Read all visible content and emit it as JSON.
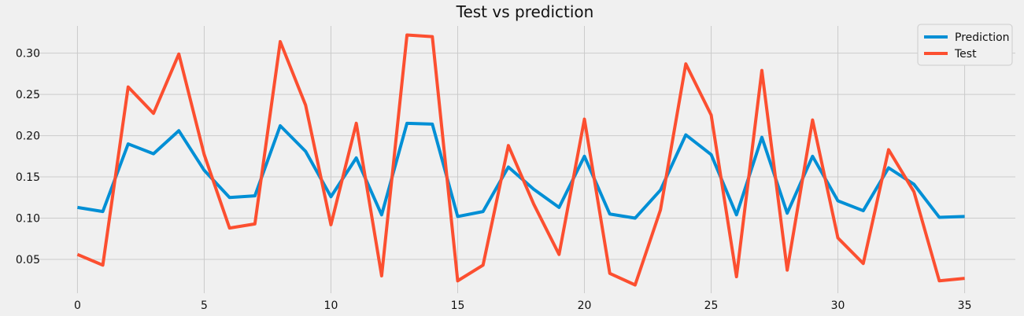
{
  "chart_data": {
    "type": "line",
    "title": "Test  vs prediction",
    "xlabel": "",
    "ylabel": "",
    "x": [
      0,
      1,
      2,
      3,
      4,
      5,
      6,
      7,
      8,
      9,
      10,
      11,
      12,
      13,
      14,
      15,
      16,
      17,
      18,
      19,
      20,
      21,
      22,
      23,
      24,
      25,
      26,
      27,
      28,
      29,
      30,
      31,
      32,
      33,
      34,
      35
    ],
    "xlim": [
      -2,
      37
    ],
    "ylim": [
      0.009,
      0.333
    ],
    "xticks": [
      0,
      5,
      10,
      15,
      20,
      25,
      30,
      35
    ],
    "yticks": [
      0.05,
      0.1,
      0.15,
      0.2,
      0.25,
      0.3
    ],
    "ytick_labels": [
      "0.05",
      "0.10",
      "0.15",
      "0.20",
      "0.25",
      "0.30"
    ],
    "grid": true,
    "legend_position": "top-right",
    "series": [
      {
        "name": "Prediction",
        "color": "#008fd5",
        "values": [
          0.113,
          0.108,
          0.19,
          0.178,
          0.206,
          0.158,
          0.125,
          0.127,
          0.212,
          0.181,
          0.126,
          0.173,
          0.104,
          0.215,
          0.214,
          0.102,
          0.108,
          0.162,
          0.135,
          0.113,
          0.175,
          0.105,
          0.1,
          0.134,
          0.201,
          0.177,
          0.104,
          0.198,
          0.106,
          0.175,
          0.121,
          0.109,
          0.161,
          0.141,
          0.101,
          0.102
        ]
      },
      {
        "name": "Test",
        "color": "#fc4f30",
        "values": [
          0.056,
          0.043,
          0.259,
          0.227,
          0.299,
          0.177,
          0.088,
          0.093,
          0.314,
          0.237,
          0.092,
          0.215,
          0.03,
          0.322,
          0.32,
          0.024,
          0.043,
          0.188,
          0.117,
          0.056,
          0.22,
          0.033,
          0.019,
          0.11,
          0.287,
          0.225,
          0.029,
          0.279,
          0.037,
          0.219,
          0.076,
          0.045,
          0.183,
          0.132,
          0.024,
          0.027
        ]
      }
    ]
  }
}
